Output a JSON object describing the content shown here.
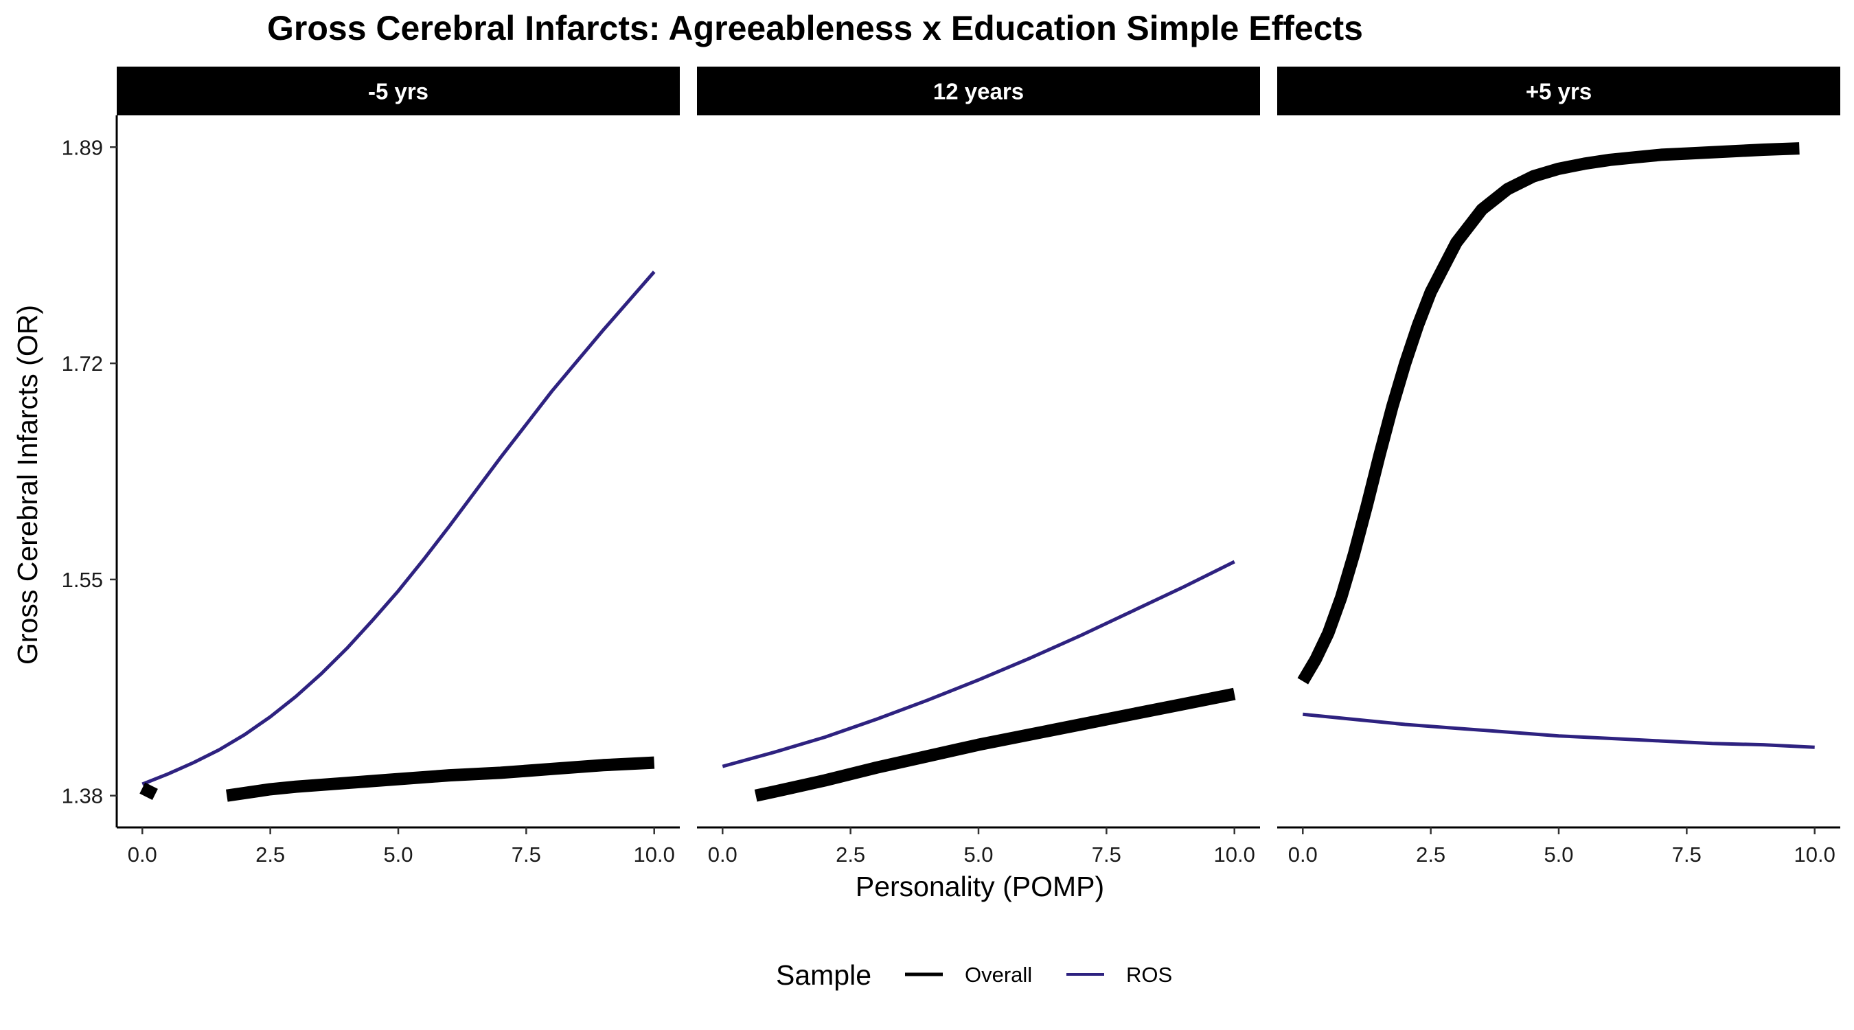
{
  "chart_data": {
    "type": "line",
    "title": "Gross Cerebral Infarcts: Agreeableness x Education Simple Effects",
    "xlabel": "Personality (POMP)",
    "ylabel": "Gross Cerebral Infarcts (OR)",
    "xlim": [
      -0.5,
      10.5
    ],
    "ylim": [
      1.355,
      1.915
    ],
    "x_ticks": [
      0,
      2.5,
      5,
      7.5,
      10
    ],
    "x_tick_labels": [
      "0.0",
      "2.5",
      "5.0",
      "7.5",
      "10.0"
    ],
    "y_ticks": [
      1.38,
      1.55,
      1.72,
      1.89
    ],
    "y_tick_labels": [
      "1.38",
      "1.55",
      "1.72",
      "1.89"
    ],
    "grid": false,
    "legend": {
      "title": "Sample",
      "position": "bottom",
      "entries": [
        "Overall",
        "ROS"
      ]
    },
    "series_colors": {
      "Overall": "#000000",
      "ROS": "#2e2280"
    },
    "panels": [
      {
        "label": "-5 yrs",
        "series": [
          {
            "name": "Overall",
            "segments": [
              {
                "x": [
                  0.0,
                  0.25
                ],
                "y": [
                  1.386,
                  1.381
                ]
              },
              {
                "x": [
                  1.65,
                  2.5,
                  3.0,
                  4.0,
                  5.0,
                  6.0,
                  7.0,
                  8.0,
                  9.0,
                  10.0
                ],
                "y": [
                  1.38,
                  1.385,
                  1.387,
                  1.39,
                  1.393,
                  1.396,
                  1.398,
                  1.401,
                  1.404,
                  1.406
                ]
              }
            ]
          },
          {
            "name": "ROS",
            "segments": [
              {
                "x": [
                  0.0,
                  0.5,
                  1.0,
                  1.5,
                  2.0,
                  2.5,
                  3.0,
                  3.5,
                  4.0,
                  4.5,
                  5.0,
                  5.5,
                  6.0,
                  6.5,
                  7.0,
                  7.5,
                  8.0,
                  8.5,
                  9.0,
                  9.5,
                  10.0
                ],
                "y": [
                  1.389,
                  1.397,
                  1.406,
                  1.416,
                  1.428,
                  1.442,
                  1.458,
                  1.476,
                  1.496,
                  1.518,
                  1.541,
                  1.566,
                  1.592,
                  1.619,
                  1.646,
                  1.672,
                  1.698,
                  1.722,
                  1.746,
                  1.769,
                  1.792
                ]
              }
            ]
          }
        ]
      },
      {
        "label": "12 years",
        "series": [
          {
            "name": "Overall",
            "segments": [
              {
                "x": [
                  0.65,
                  1.0,
                  2.0,
                  3.0,
                  4.0,
                  5.0,
                  6.0,
                  7.0,
                  8.0,
                  9.0,
                  10.0
                ],
                "y": [
                  1.38,
                  1.383,
                  1.392,
                  1.402,
                  1.411,
                  1.42,
                  1.428,
                  1.436,
                  1.444,
                  1.452,
                  1.46
                ]
              }
            ]
          },
          {
            "name": "ROS",
            "segments": [
              {
                "x": [
                  0.0,
                  1.0,
                  2.0,
                  3.0,
                  4.0,
                  5.0,
                  6.0,
                  7.0,
                  8.0,
                  9.0,
                  10.0
                ],
                "y": [
                  1.403,
                  1.414,
                  1.426,
                  1.44,
                  1.455,
                  1.471,
                  1.488,
                  1.506,
                  1.525,
                  1.544,
                  1.564
                ]
              }
            ]
          }
        ]
      },
      {
        "label": "+5 yrs",
        "series": [
          {
            "name": "Overall",
            "segments": [
              {
                "x": [
                  0.0,
                  0.25,
                  0.5,
                  0.75,
                  1.0,
                  1.25,
                  1.5,
                  1.75,
                  2.0,
                  2.25,
                  2.5,
                  3.0,
                  3.5,
                  4.0,
                  4.5,
                  5.0,
                  5.5,
                  6.0,
                  6.5,
                  7.0,
                  7.5,
                  8.0,
                  8.5,
                  9.0,
                  9.7
                ],
                "y": [
                  1.47,
                  1.487,
                  1.508,
                  1.536,
                  1.57,
                  1.608,
                  1.648,
                  1.686,
                  1.72,
                  1.75,
                  1.776,
                  1.815,
                  1.841,
                  1.857,
                  1.867,
                  1.873,
                  1.877,
                  1.88,
                  1.882,
                  1.884,
                  1.885,
                  1.886,
                  1.887,
                  1.888,
                  1.889
                ]
              }
            ]
          },
          {
            "name": "ROS",
            "segments": [
              {
                "x": [
                  0.0,
                  1.0,
                  2.0,
                  3.0,
                  4.0,
                  5.0,
                  6.0,
                  7.0,
                  8.0,
                  9.0,
                  10.0
                ],
                "y": [
                  1.444,
                  1.44,
                  1.436,
                  1.433,
                  1.43,
                  1.427,
                  1.425,
                  1.423,
                  1.421,
                  1.42,
                  1.418
                ]
              }
            ]
          }
        ]
      }
    ]
  }
}
